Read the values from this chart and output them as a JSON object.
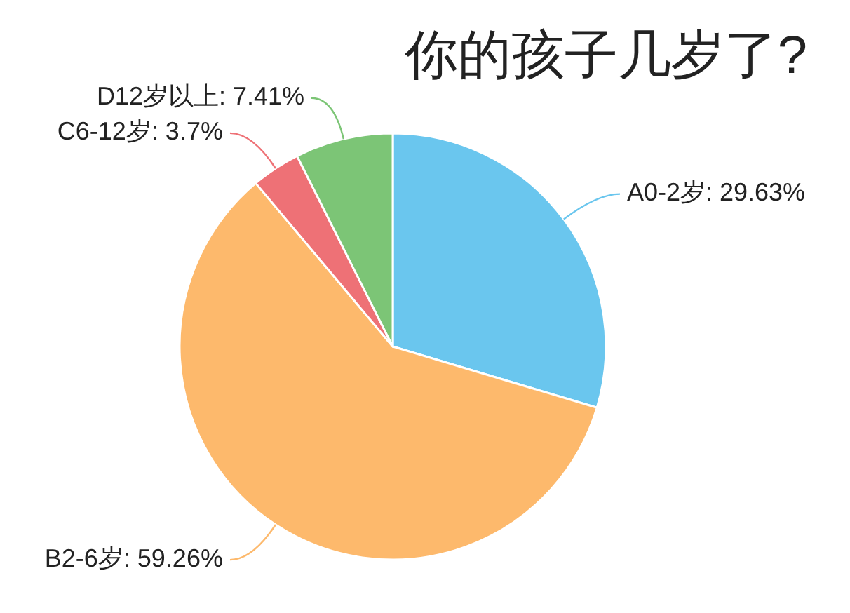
{
  "chart_data": {
    "type": "pie",
    "title": "你的孩子几岁了?",
    "categories": [
      "A0-2岁",
      "B2-6岁",
      "C6-12岁",
      "D12岁以上"
    ],
    "values": [
      29.63,
      59.26,
      3.7,
      7.41
    ],
    "value_labels": [
      "29.63%",
      "59.26%",
      "3.7%",
      "7.41%"
    ],
    "colors": [
      "#6ac6ee",
      "#fdb96c",
      "#ee7176",
      "#7cc576"
    ]
  }
}
